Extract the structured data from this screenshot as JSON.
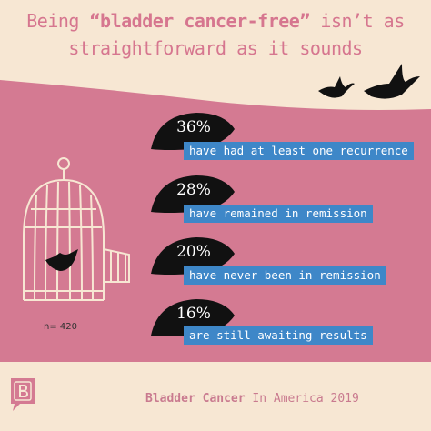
{
  "title": {
    "line1_before": "Being",
    "line1_emphasis": "“bladder cancer-free”",
    "line1_after": "isn’t as",
    "line2": "straightforward as it sounds"
  },
  "stats": [
    {
      "percent": "36%",
      "label": "have had at least one recurrence"
    },
    {
      "percent": "28%",
      "label": "have remained in remission"
    },
    {
      "percent": "20%",
      "label": "have never been in remission"
    },
    {
      "percent": "16%",
      "label": "are still awaiting results"
    }
  ],
  "sample_size": "n= 420",
  "footer": {
    "brand": "Bladder Cancer",
    "rest": "In America 2019"
  },
  "colors": {
    "background": "#f7e7d3",
    "pink": "#d47a92",
    "accent_blue": "#3e87c8",
    "leaf": "#111111"
  },
  "icons": [
    "bird-icon",
    "birdcage-icon",
    "leaf-icon",
    "brand-logo-icon"
  ]
}
